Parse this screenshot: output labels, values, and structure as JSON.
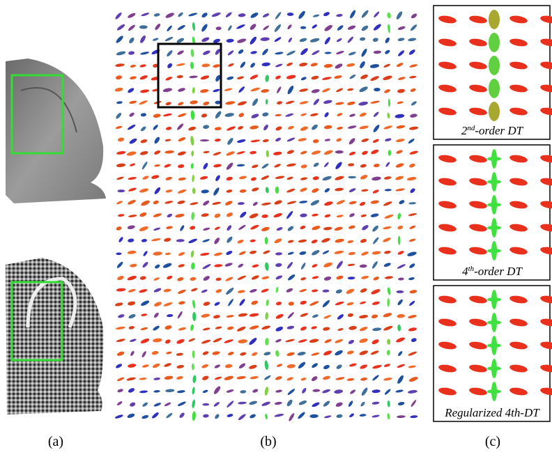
{
  "panels": {
    "a": {
      "label": "(a)"
    },
    "b": {
      "label": "(b)"
    },
    "c": {
      "label": "(c)",
      "insets": [
        {
          "caption": {
            "base": "2",
            "sup": "nd",
            "rest": "-order DT"
          }
        },
        {
          "caption": {
            "base": "4",
            "sup": "th",
            "rest": "-order DT"
          }
        },
        {
          "caption": {
            "base": "Regularized 4th-DT",
            "sup": "",
            "rest": ""
          }
        }
      ]
    }
  }
}
